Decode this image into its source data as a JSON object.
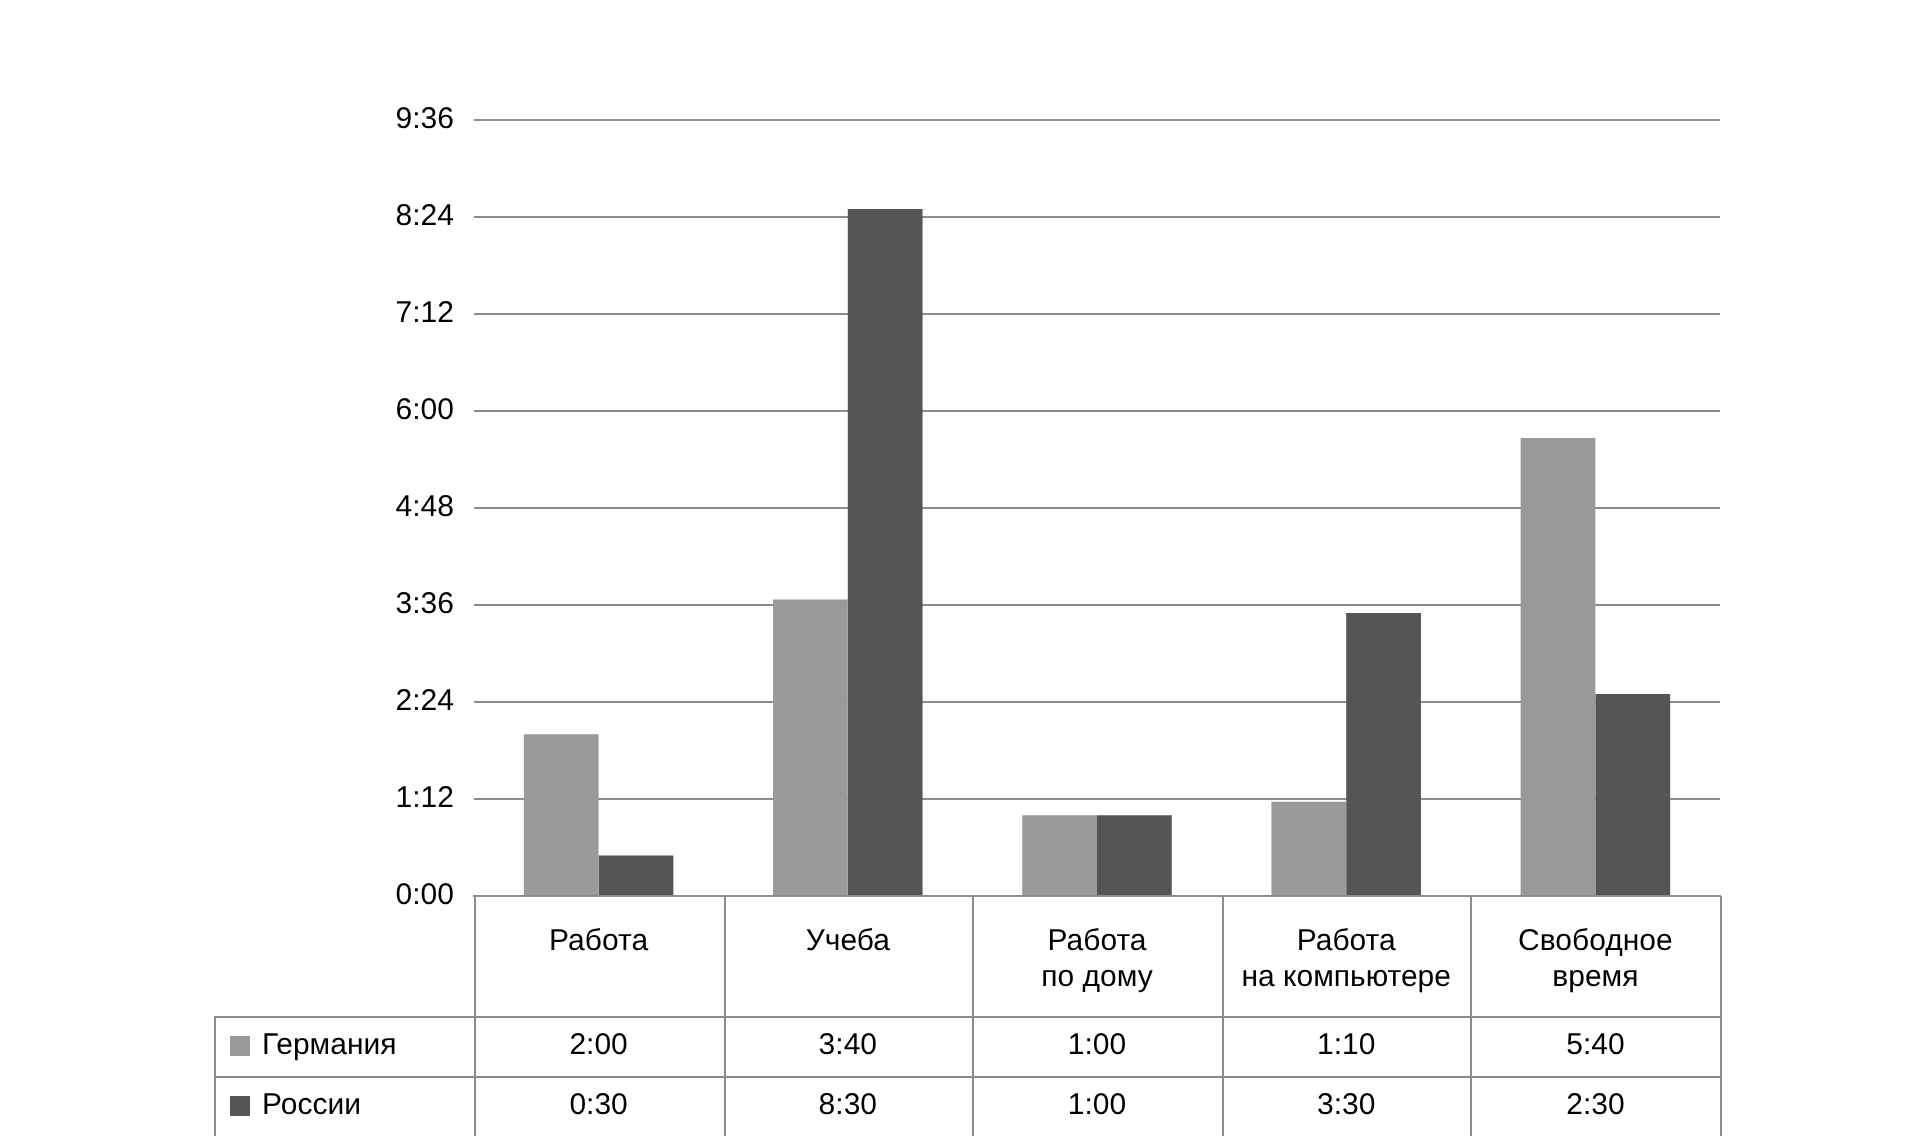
{
  "chart_data": {
    "type": "bar",
    "categories": [
      "Работа",
      "Учеба",
      "Работа по дому",
      "Работа на компьютере",
      "Свободное время"
    ],
    "series": [
      {
        "name": "Германия",
        "color": "#9a9a9a",
        "values": [
          2,
          3.6667,
          1,
          1.1667,
          5.6667
        ],
        "value_labels": [
          "2:00",
          "3:40",
          "1:00",
          "1:10",
          "5:40"
        ]
      },
      {
        "name": "России",
        "color": "#555555",
        "values": [
          0.5,
          8.5,
          1,
          3.5,
          2.5
        ],
        "value_labels": [
          "0:30",
          "8:30",
          "1:00",
          "3:30",
          "2:30"
        ]
      }
    ],
    "ylim": [
      0,
      9.6
    ],
    "yticks": [
      {
        "value": 0,
        "label": "0:00"
      },
      {
        "value": 1.2,
        "label": "1:12"
      },
      {
        "value": 2.4,
        "label": "2:24"
      },
      {
        "value": 3.6,
        "label": "3:36"
      },
      {
        "value": 4.8,
        "label": "4:48"
      },
      {
        "value": 6,
        "label": "6:00"
      },
      {
        "value": 7.2,
        "label": "7:12"
      },
      {
        "value": 8.4,
        "label": "8:24"
      },
      {
        "value": 9.6,
        "label": "9:36"
      }
    ],
    "grid": "y",
    "legend": "bottom"
  }
}
